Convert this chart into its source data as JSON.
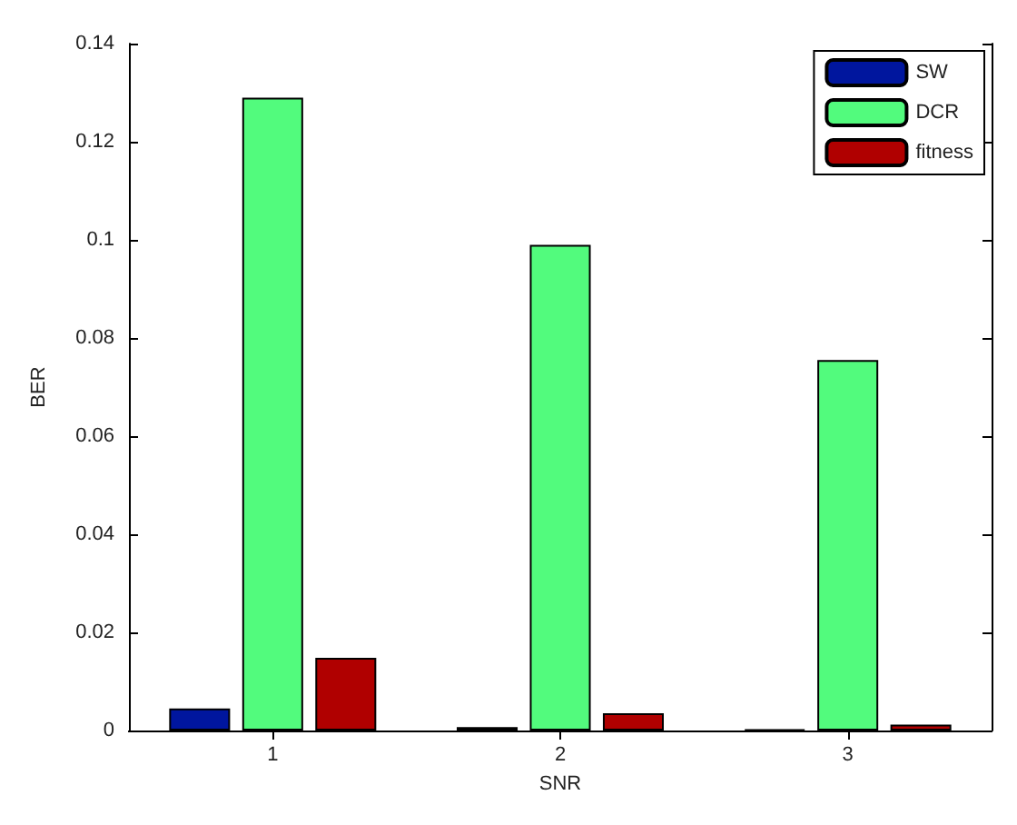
{
  "chart_data": {
    "type": "bar",
    "xlabel": "SNR",
    "ylabel": "BER",
    "categories": [
      "1",
      "2",
      "3"
    ],
    "series": [
      {
        "name": "SW",
        "color": "#00169e",
        "values": [
          0.0045,
          0.0007,
          0.0002
        ]
      },
      {
        "name": "DCR",
        "color": "#52fb7d",
        "values": [
          0.129,
          0.099,
          0.0755
        ]
      },
      {
        "name": "fitness",
        "color": "#b00000",
        "values": [
          0.0148,
          0.0035,
          0.0012
        ]
      }
    ],
    "ylim": [
      0,
      0.14
    ],
    "yticks": [
      0,
      0.02,
      0.04,
      0.06,
      0.08,
      0.1,
      0.12,
      0.14
    ],
    "grid": false,
    "legend": "top right"
  }
}
